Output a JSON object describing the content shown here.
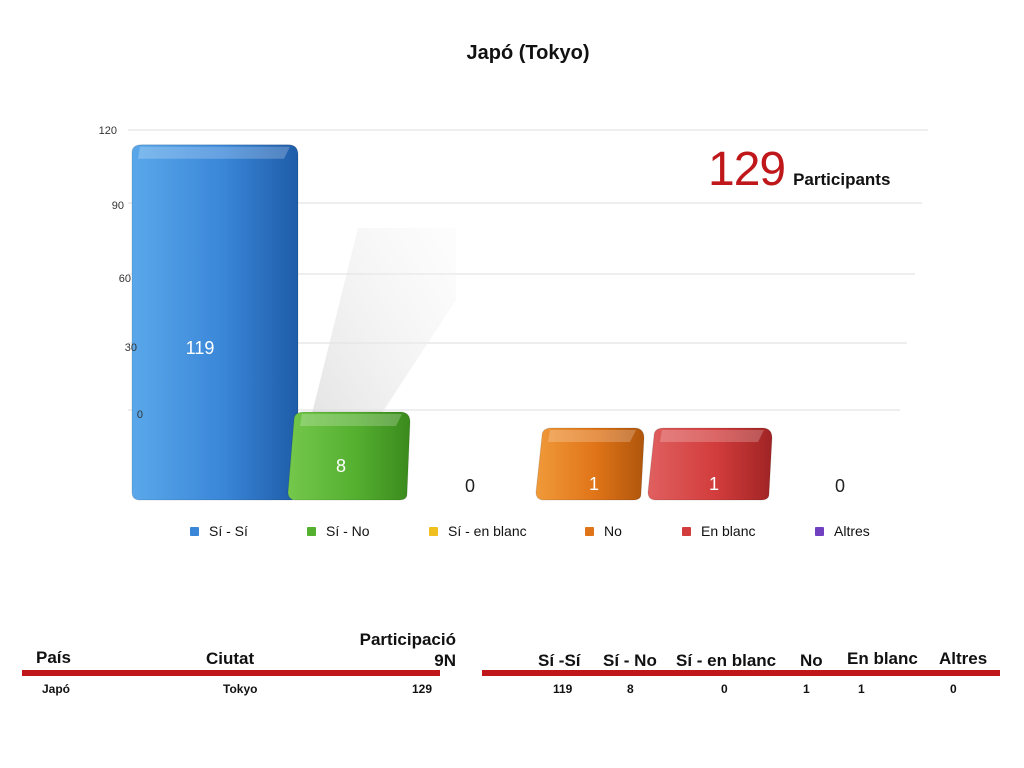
{
  "chart_data": {
    "type": "bar",
    "title": "Japó (Tokyo)",
    "categories": [
      "Sí - Sí",
      "Sí - No",
      "Sí - en blanc",
      "No",
      "En blanc",
      "Altres"
    ],
    "values": [
      119,
      8,
      0,
      1,
      1,
      0
    ],
    "value_labels": [
      "119",
      "8",
      "0",
      "1",
      "1",
      "0"
    ],
    "colors": [
      "#3a86d8",
      "#55b030",
      "#f0c020",
      "#e07418",
      "#d23c3c",
      "#7040c0"
    ],
    "yticks": [
      "0",
      "30",
      "60",
      "90",
      "120"
    ],
    "ylim": [
      0,
      120
    ],
    "grid": true,
    "legend": "bottom"
  },
  "summary": {
    "count": "129",
    "label": "Participants"
  },
  "table": {
    "headers": {
      "pais": "País",
      "ciutat": "Ciutat",
      "participacio": "Participació",
      "participacio_2": "9N",
      "si_si": "Sí -Sí",
      "si_no": "Sí - No",
      "si_blanc": "Sí - en blanc",
      "no": "No",
      "blanc": "En blanc",
      "altres": "Altres"
    },
    "row": {
      "pais": "Japó",
      "ciutat": "Tokyo",
      "participacio": "129",
      "si_si": "119",
      "si_no": "8",
      "si_blanc": "0",
      "no": "1",
      "blanc": "1",
      "altres": "0"
    }
  }
}
